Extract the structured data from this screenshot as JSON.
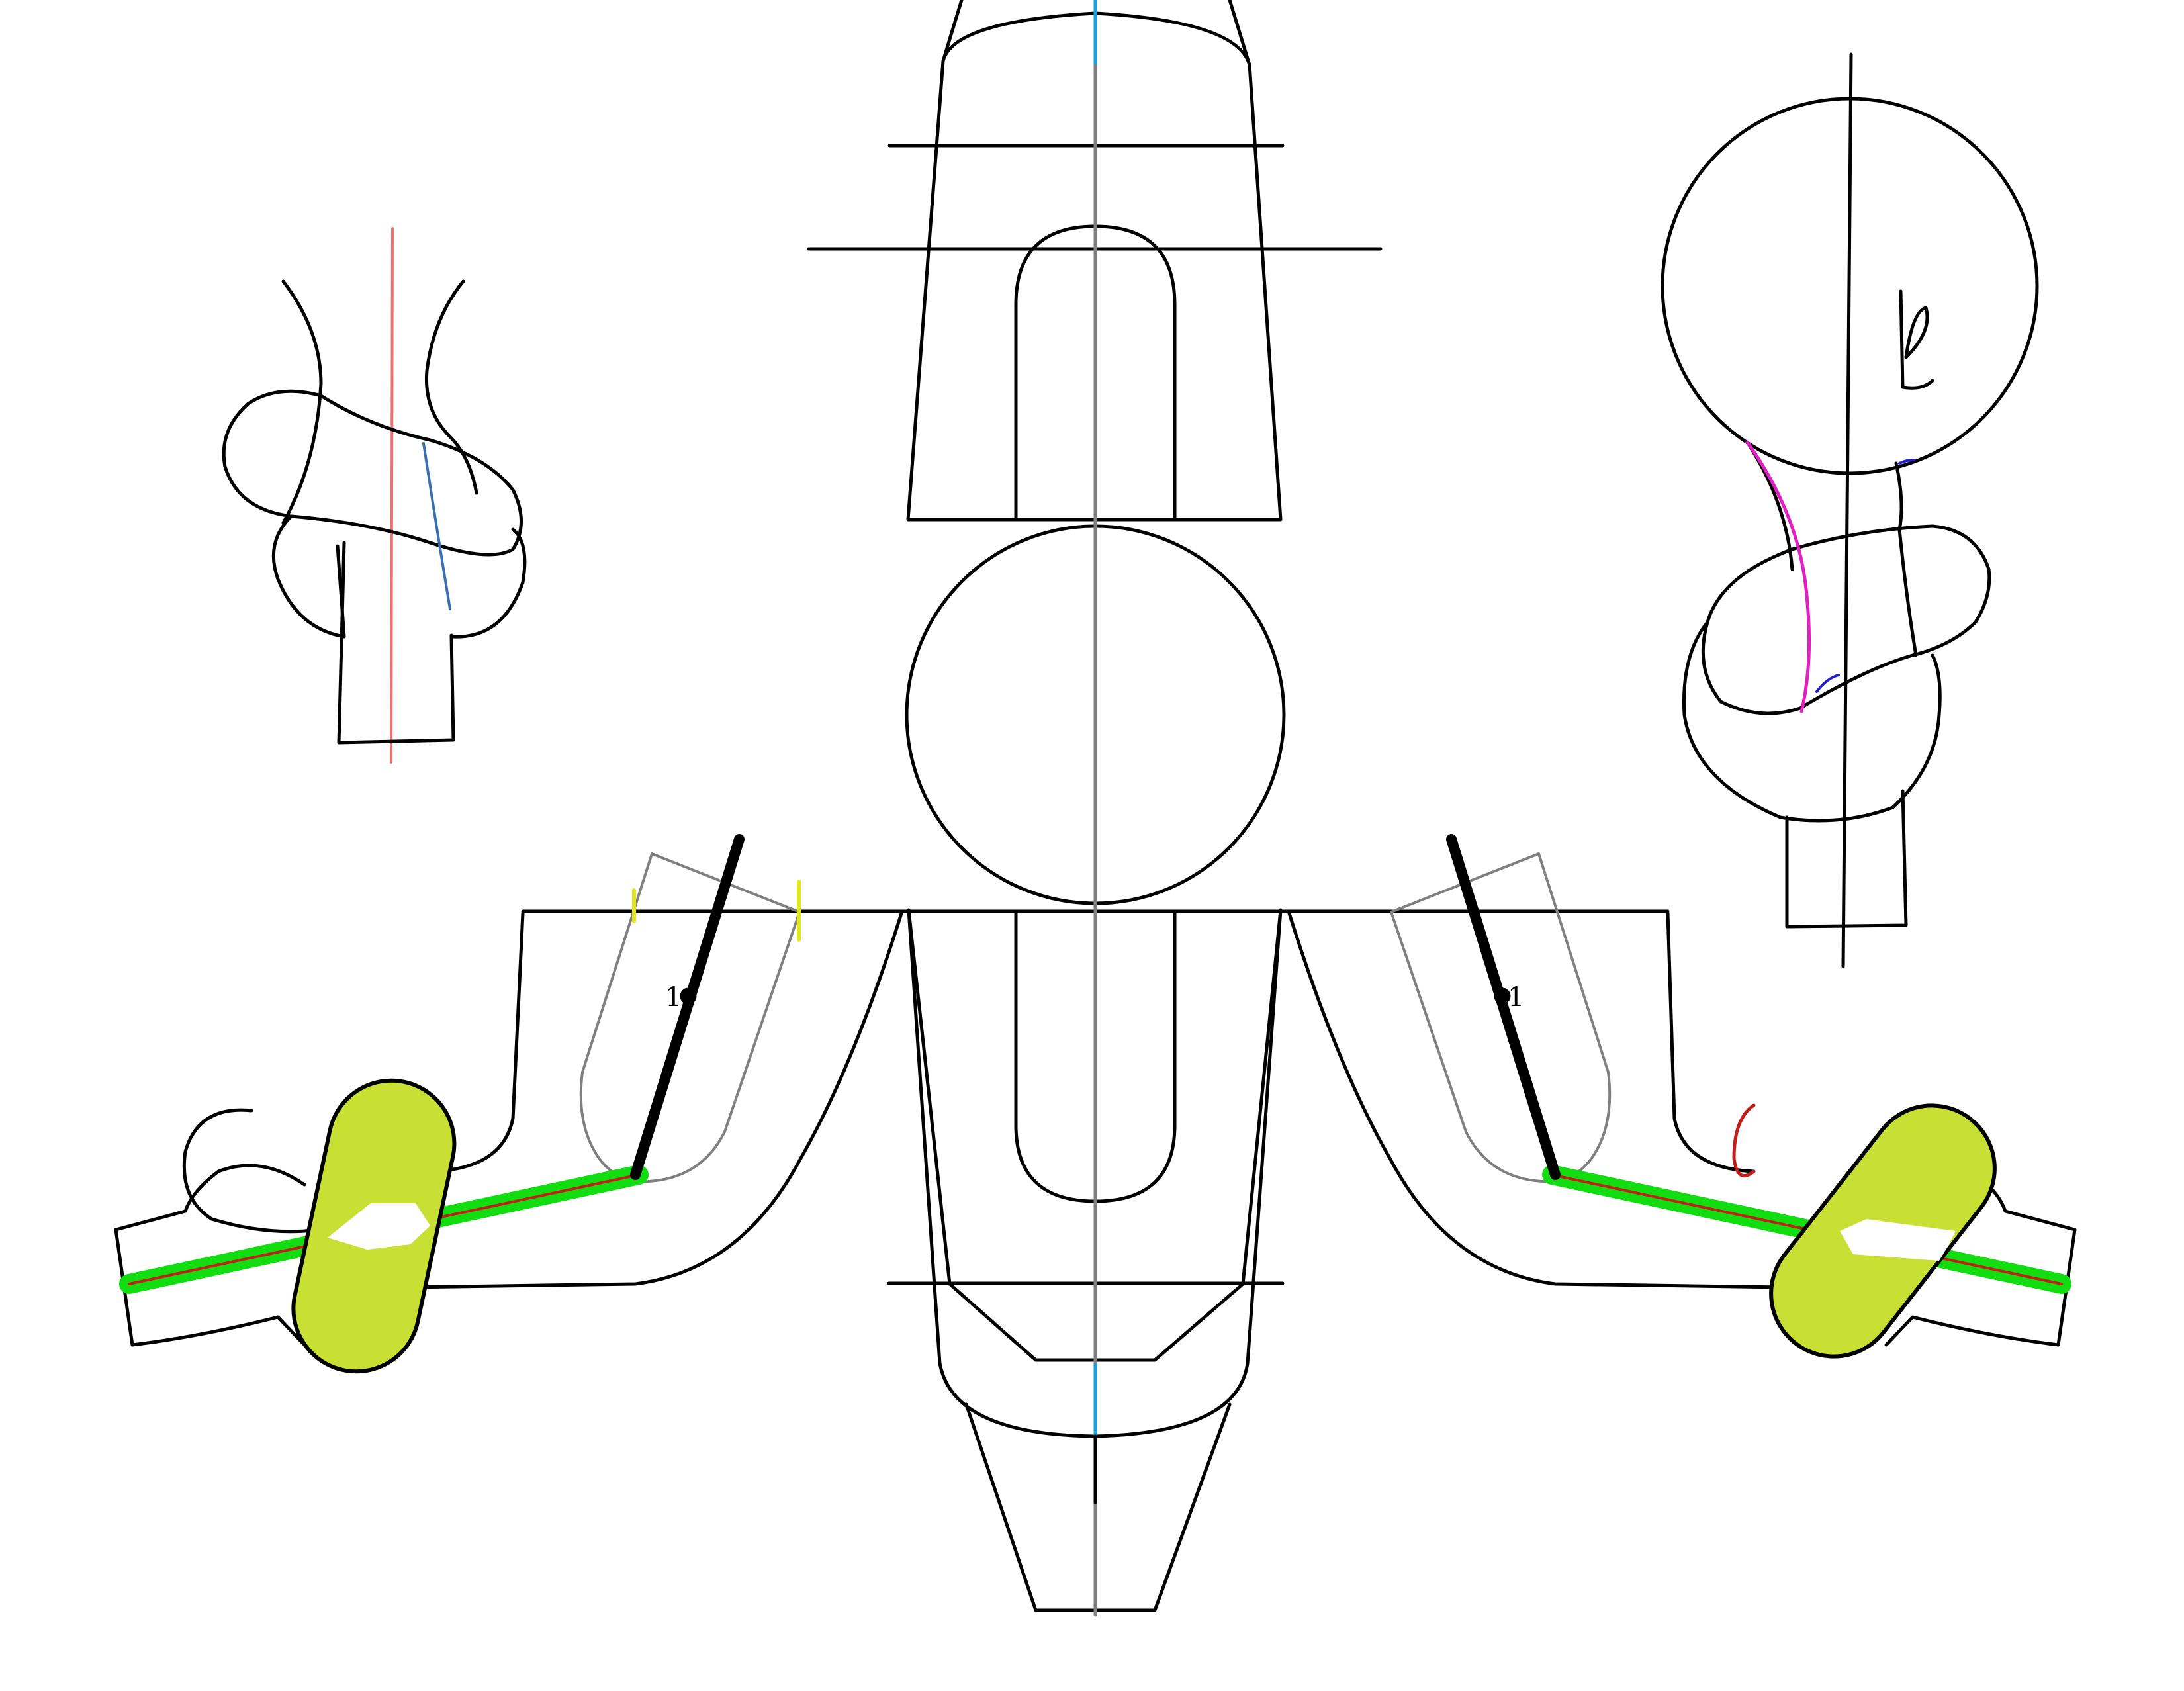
{
  "labels": {
    "left_mark": "1",
    "right_mark": "1",
    "top_right_glyph": "ℓ"
  },
  "colors": {
    "outline": "#000000",
    "grey_outline": "#808080",
    "center_axis": "#808080",
    "center_axis_tip": "#1aa3e0",
    "left_axis": "#f07070",
    "left_detail": "#3a6fb0",
    "right_detail_magenta": "#e020c0",
    "right_detail_blue": "#2020d0",
    "highlight_green": "#11dd11",
    "highlight_red": "#c0201a",
    "accent_yellow_green": "#c8e034",
    "yellow_tick": "#e6e620"
  }
}
